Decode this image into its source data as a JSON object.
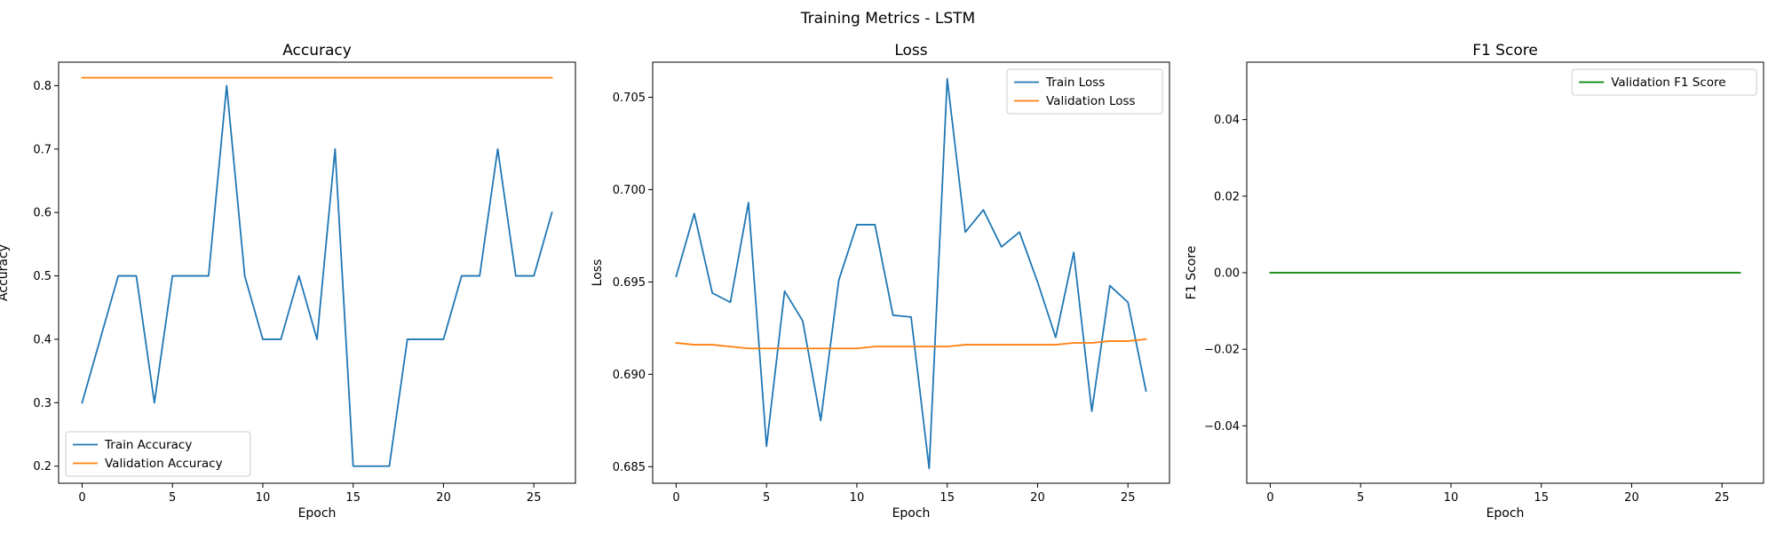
{
  "suptitle": "Training Metrics - LSTM",
  "chart_data": [
    {
      "type": "line",
      "title": "Accuracy",
      "xlabel": "Epoch",
      "ylabel": "Accuracy",
      "xlim": [
        -1.3,
        27.3
      ],
      "ylim": [
        0.173,
        0.837
      ],
      "xticks": [
        0,
        5,
        10,
        15,
        20,
        25
      ],
      "yticks": [
        0.2,
        0.3,
        0.4,
        0.5,
        0.6,
        0.7,
        0.8
      ],
      "ytick_labels": [
        "0.2",
        "0.3",
        "0.4",
        "0.5",
        "0.6",
        "0.7",
        "0.8"
      ],
      "legend": "lower-left",
      "x": [
        0,
        1,
        2,
        3,
        4,
        5,
        6,
        7,
        8,
        9,
        10,
        11,
        12,
        13,
        14,
        15,
        16,
        17,
        18,
        19,
        20,
        21,
        22,
        23,
        24,
        25,
        26
      ],
      "series": [
        {
          "name": "Train Accuracy",
          "color": "#1f77b4",
          "values": [
            0.3,
            0.4,
            0.5,
            0.5,
            0.3,
            0.5,
            0.5,
            0.5,
            0.8,
            0.5,
            0.4,
            0.4,
            0.5,
            0.4,
            0.7,
            0.2,
            0.2,
            0.2,
            0.4,
            0.4,
            0.4,
            0.5,
            0.5,
            0.7,
            0.5,
            0.5,
            0.6
          ]
        },
        {
          "name": "Validation Accuracy",
          "color": "#ff7f0e",
          "values": [
            0.8125,
            0.8125,
            0.8125,
            0.8125,
            0.8125,
            0.8125,
            0.8125,
            0.8125,
            0.8125,
            0.8125,
            0.8125,
            0.8125,
            0.8125,
            0.8125,
            0.8125,
            0.8125,
            0.8125,
            0.8125,
            0.8125,
            0.8125,
            0.8125,
            0.8125,
            0.8125,
            0.8125,
            0.8125,
            0.8125,
            0.8125
          ]
        }
      ]
    },
    {
      "type": "line",
      "title": "Loss",
      "xlabel": "Epoch",
      "ylabel": "Loss",
      "xlim": [
        -1.3,
        27.3
      ],
      "ylim": [
        0.6841,
        0.7069
      ],
      "xticks": [
        0,
        5,
        10,
        15,
        20,
        25
      ],
      "yticks": [
        0.685,
        0.69,
        0.695,
        0.7,
        0.705
      ],
      "ytick_labels": [
        "0.685",
        "0.690",
        "0.695",
        "0.700",
        "0.705"
      ],
      "legend": "upper-right",
      "x": [
        0,
        1,
        2,
        3,
        4,
        5,
        6,
        7,
        8,
        9,
        10,
        11,
        12,
        13,
        14,
        15,
        16,
        17,
        18,
        19,
        20,
        21,
        22,
        23,
        24,
        25,
        26
      ],
      "series": [
        {
          "name": "Train Loss",
          "color": "#1f77b4",
          "values": [
            0.6953,
            0.6987,
            0.6944,
            0.6939,
            0.6993,
            0.6861,
            0.6945,
            0.6929,
            0.6875,
            0.6951,
            0.6981,
            0.6981,
            0.6932,
            0.6931,
            0.6849,
            0.706,
            0.6977,
            0.6989,
            0.6969,
            0.6977,
            0.695,
            0.692,
            0.6966,
            0.688,
            0.6948,
            0.6939,
            0.6891
          ]
        },
        {
          "name": "Validation Loss",
          "color": "#ff7f0e",
          "values": [
            0.6917,
            0.6916,
            0.6916,
            0.6915,
            0.6914,
            0.6914,
            0.6914,
            0.6914,
            0.6914,
            0.6914,
            0.6914,
            0.6915,
            0.6915,
            0.6915,
            0.6915,
            0.6915,
            0.6916,
            0.6916,
            0.6916,
            0.6916,
            0.6916,
            0.6916,
            0.6917,
            0.6917,
            0.6918,
            0.6918,
            0.6919
          ]
        }
      ]
    },
    {
      "type": "line",
      "title": "F1 Score",
      "xlabel": "Epoch",
      "ylabel": "F1 Score",
      "xlim": [
        -1.3,
        27.3
      ],
      "ylim": [
        -0.055,
        0.055
      ],
      "xticks": [
        0,
        5,
        10,
        15,
        20,
        25
      ],
      "yticks": [
        -0.04,
        -0.02,
        0.0,
        0.02,
        0.04
      ],
      "ytick_labels": [
        "−0.04",
        "−0.02",
        "0.00",
        "0.02",
        "0.04"
      ],
      "legend": "upper-right",
      "x": [
        0,
        1,
        2,
        3,
        4,
        5,
        6,
        7,
        8,
        9,
        10,
        11,
        12,
        13,
        14,
        15,
        16,
        17,
        18,
        19,
        20,
        21,
        22,
        23,
        24,
        25,
        26
      ],
      "series": [
        {
          "name": "Validation F1 Score",
          "color": "#008000",
          "values": [
            0,
            0,
            0,
            0,
            0,
            0,
            0,
            0,
            0,
            0,
            0,
            0,
            0,
            0,
            0,
            0,
            0,
            0,
            0,
            0,
            0,
            0,
            0,
            0,
            0,
            0,
            0
          ]
        }
      ]
    }
  ]
}
